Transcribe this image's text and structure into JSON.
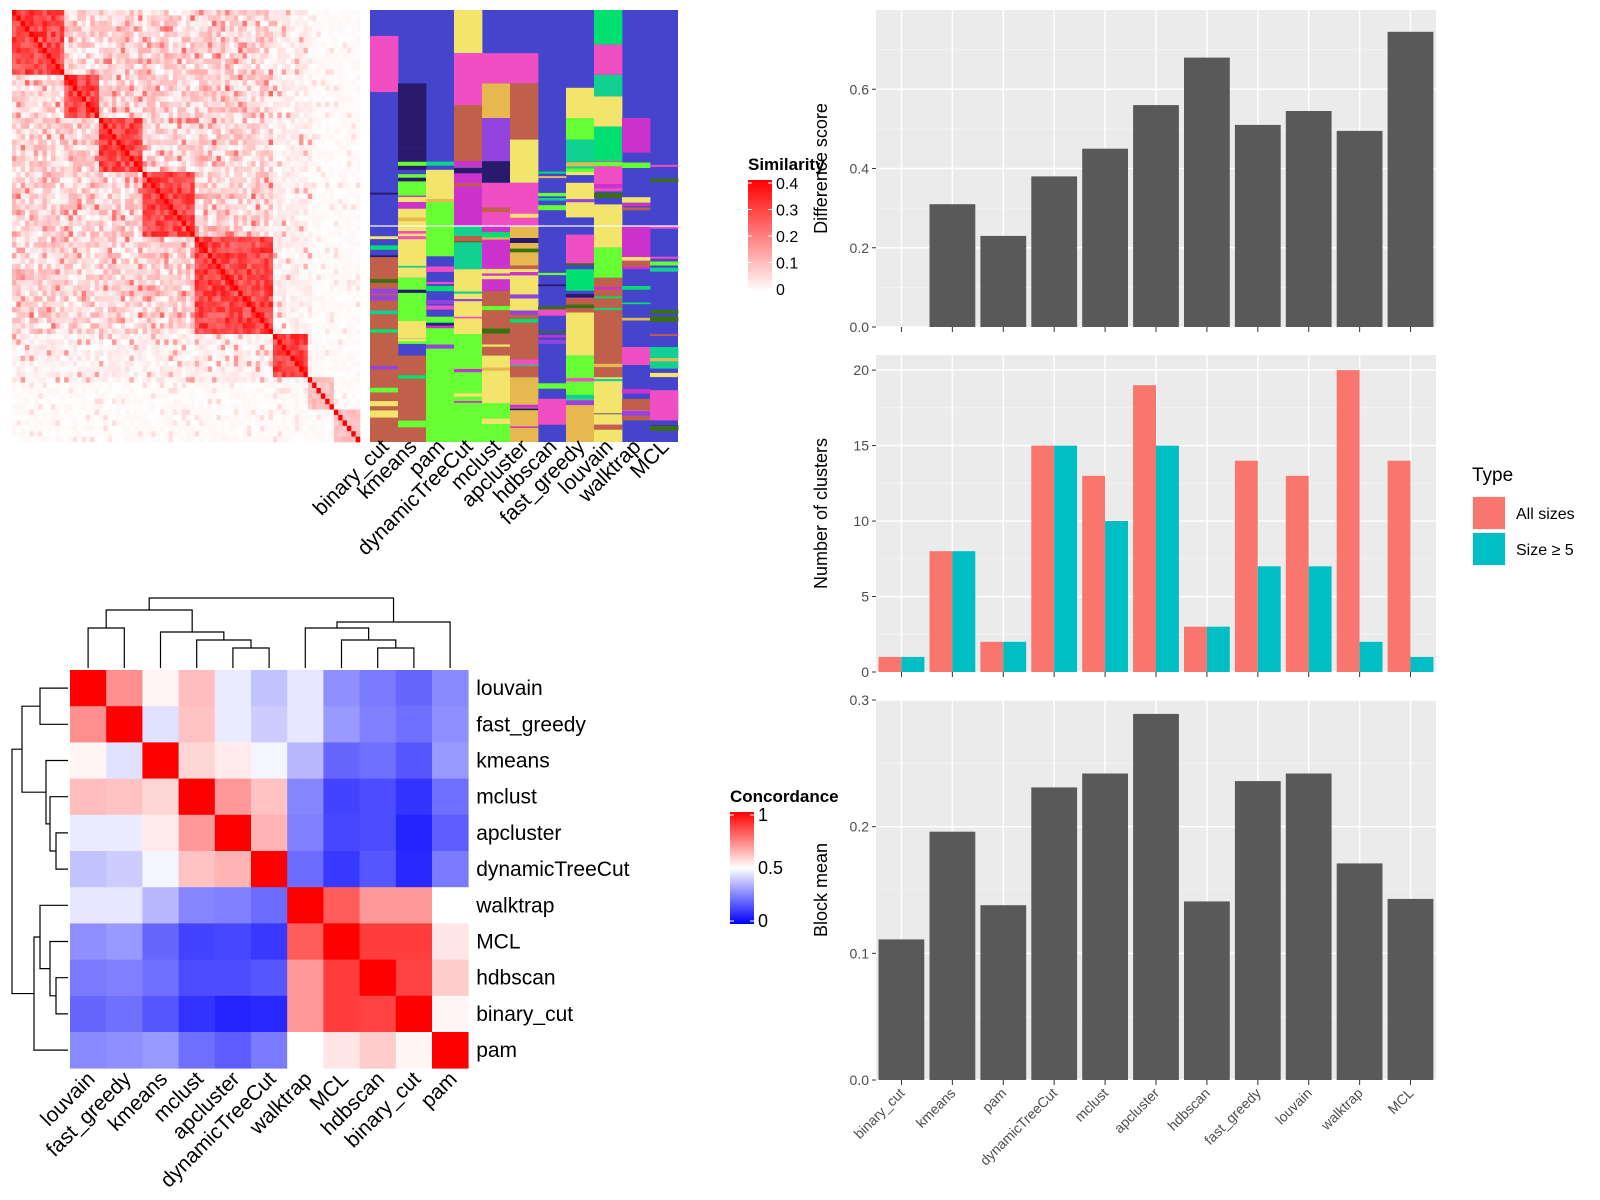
{
  "methods": [
    "binary_cut",
    "kmeans",
    "pam",
    "dynamicTreeCut",
    "mclust",
    "apcluster",
    "hdbscan",
    "fast_greedy",
    "louvain",
    "walktrap",
    "MCL"
  ],
  "chart_data": [
    {
      "type": "heatmap",
      "name": "similarity-heatmap",
      "legend_title": "Similarity",
      "legend_ticks": [
        "0.4",
        "0.3",
        "0.2",
        "0.1",
        "0"
      ],
      "range": [
        0,
        0.4
      ],
      "colors": [
        "#ffffff",
        "#ff0000"
      ]
    },
    {
      "type": "heatmap",
      "name": "cluster-assignments",
      "columns": [
        "binary_cut",
        "kmeans",
        "pam",
        "dynamicTreeCut",
        "mclust",
        "apcluster",
        "hdbscan",
        "fast_greedy",
        "louvain",
        "walktrap",
        "MCL"
      ],
      "background": "#4444cc"
    },
    {
      "type": "bar",
      "name": "difference-score",
      "ylabel": "Difference score",
      "categories": [
        "binary_cut",
        "kmeans",
        "pam",
        "dynamicTreeCut",
        "mclust",
        "apcluster",
        "hdbscan",
        "fast_greedy",
        "louvain",
        "walktrap",
        "MCL"
      ],
      "values": [
        0.0,
        0.31,
        0.23,
        0.38,
        0.45,
        0.56,
        0.68,
        0.51,
        0.545,
        0.495,
        0.745
      ],
      "ylim": [
        0,
        0.8
      ],
      "yticks": [
        0.0,
        0.2,
        0.4,
        0.6
      ],
      "ytick_labels": [
        "0.0",
        "0.2",
        "0.4",
        "0.6"
      ],
      "color": "#595959"
    },
    {
      "type": "bar",
      "name": "number-of-clusters",
      "ylabel": "Number of clusters",
      "categories": [
        "binary_cut",
        "kmeans",
        "pam",
        "dynamicTreeCut",
        "mclust",
        "apcluster",
        "hdbscan",
        "fast_greedy",
        "louvain",
        "walktrap",
        "MCL"
      ],
      "series": [
        {
          "name": "All sizes",
          "color": "#f8766d",
          "values": [
            1,
            8,
            2,
            15,
            13,
            19,
            3,
            14,
            13,
            20,
            14
          ]
        },
        {
          "name": "Size ≥ 5",
          "color": "#00bfc4",
          "values": [
            1,
            8,
            2,
            15,
            10,
            15,
            3,
            7,
            7,
            2,
            1
          ]
        }
      ],
      "ylim": [
        0,
        21
      ],
      "yticks": [
        0,
        5,
        10,
        15,
        20
      ],
      "ytick_labels": [
        "0",
        "5",
        "10",
        "15",
        "20"
      ],
      "legend_title": "Type",
      "legend_position": "right"
    },
    {
      "type": "bar",
      "name": "block-mean",
      "ylabel": "Block mean",
      "categories": [
        "binary_cut",
        "kmeans",
        "pam",
        "dynamicTreeCut",
        "mclust",
        "apcluster",
        "hdbscan",
        "fast_greedy",
        "louvain",
        "walktrap",
        "MCL"
      ],
      "values": [
        0.111,
        0.196,
        0.138,
        0.231,
        0.242,
        0.289,
        0.141,
        0.236,
        0.242,
        0.171,
        0.143
      ],
      "ylim": [
        0,
        0.3
      ],
      "yticks": [
        0.0,
        0.1,
        0.2,
        0.3
      ],
      "ytick_labels": [
        "0.0",
        "0.1",
        "0.2",
        "0.3"
      ],
      "color": "#595959"
    },
    {
      "type": "heatmap",
      "name": "concordance-heatmap",
      "legend_title": "Concordance",
      "legend_ticks": [
        "1",
        "0.5",
        "0"
      ],
      "range": [
        0,
        1
      ],
      "colors": [
        "#0000ff",
        "#ffffff",
        "#ff0000"
      ],
      "labels": [
        "louvain",
        "fast_greedy",
        "kmeans",
        "mclust",
        "apcluster",
        "dynamicTreeCut",
        "walktrap",
        "MCL",
        "hdbscan",
        "binary_cut",
        "pam"
      ],
      "matrix": [
        [
          1.0,
          0.72,
          0.52,
          0.63,
          0.46,
          0.38,
          0.45,
          0.28,
          0.24,
          0.2,
          0.27
        ],
        [
          0.72,
          1.0,
          0.44,
          0.62,
          0.46,
          0.4,
          0.45,
          0.3,
          0.25,
          0.22,
          0.28
        ],
        [
          0.52,
          0.44,
          1.0,
          0.58,
          0.54,
          0.48,
          0.36,
          0.2,
          0.22,
          0.17,
          0.3
        ],
        [
          0.63,
          0.62,
          0.58,
          1.0,
          0.7,
          0.62,
          0.26,
          0.13,
          0.15,
          0.1,
          0.22
        ],
        [
          0.46,
          0.46,
          0.54,
          0.7,
          1.0,
          0.65,
          0.25,
          0.14,
          0.15,
          0.07,
          0.18
        ],
        [
          0.38,
          0.4,
          0.48,
          0.62,
          0.65,
          1.0,
          0.21,
          0.11,
          0.17,
          0.08,
          0.24
        ],
        [
          0.45,
          0.45,
          0.36,
          0.26,
          0.25,
          0.21,
          1.0,
          0.82,
          0.7,
          0.7,
          0.5
        ],
        [
          0.28,
          0.3,
          0.2,
          0.13,
          0.14,
          0.11,
          0.82,
          1.0,
          0.88,
          0.88,
          0.55
        ],
        [
          0.24,
          0.25,
          0.22,
          0.15,
          0.15,
          0.17,
          0.7,
          0.88,
          1.0,
          0.87,
          0.6
        ],
        [
          0.2,
          0.22,
          0.17,
          0.1,
          0.07,
          0.08,
          0.7,
          0.88,
          0.87,
          1.0,
          0.52
        ],
        [
          0.27,
          0.28,
          0.3,
          0.22,
          0.18,
          0.24,
          0.5,
          0.55,
          0.6,
          0.52,
          1.0
        ]
      ]
    }
  ]
}
